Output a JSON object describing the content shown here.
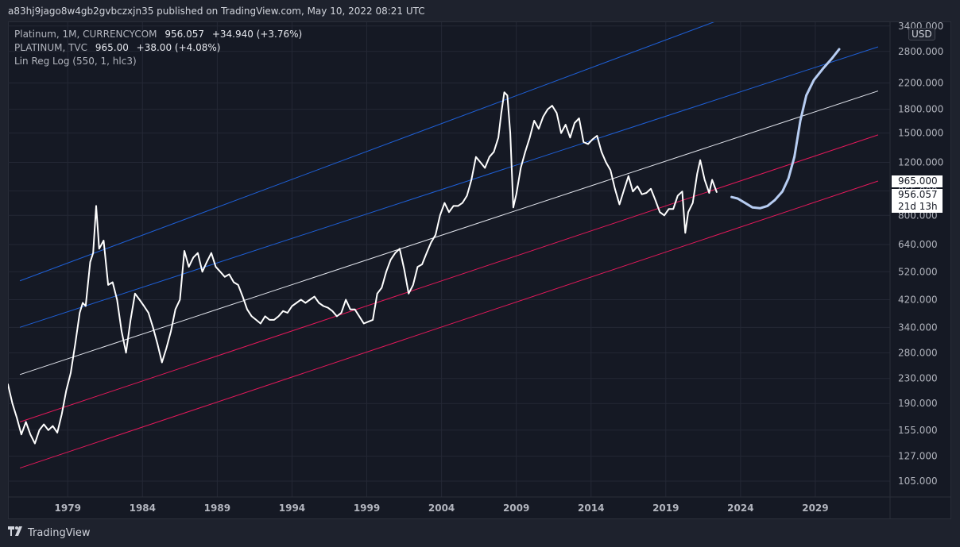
{
  "header": {
    "publish_text": "a83hj9jago8w4gb2gvbczxjn35 published on TradingView.com, May 10, 2022 08:21 UTC"
  },
  "legend": {
    "line1": {
      "name": "Platinum, 1M, CURRENCYCOM",
      "value": "956.057",
      "change": "+34.940 (+3.76%)"
    },
    "line2": {
      "name": "PLATINUM, TVC",
      "value": "965.00",
      "change": "+38.00 (+4.08%)"
    },
    "line3": {
      "name": "Lin Reg Log (550, 1, hlc3)"
    }
  },
  "currency": "USD",
  "price_tags": {
    "last": "965.000",
    "close": "956.057",
    "countdown": "21d 13h"
  },
  "footer": {
    "brand": "TradingView"
  },
  "colors": {
    "background": "#151924",
    "price": "#ffffff",
    "projection": "#b7cdf2",
    "regression_center": "#e0e3eb",
    "upper_channel": "#1e5fd6",
    "lower_channel": "#e3195a",
    "grid": "#242835"
  },
  "chart_data": {
    "type": "line",
    "scale": "log",
    "x_ticks": [
      "1979",
      "1984",
      "1989",
      "1994",
      "1999",
      "2004",
      "2009",
      "2014",
      "2019",
      "2024",
      "2029"
    ],
    "y_ticks": [
      "3400.000",
      "2800.000",
      "2200.000",
      "1800.000",
      "1500.000",
      "1200.000",
      "965.000",
      "800.000",
      "640.000",
      "520.000",
      "420.000",
      "340.000",
      "280.000",
      "230.000",
      "190.000",
      "155.000",
      "127.000",
      "105.000"
    ],
    "y_tick_values": [
      3400,
      2800,
      2200,
      1800,
      1500,
      1200,
      965,
      800,
      640,
      520,
      420,
      340,
      280,
      230,
      190,
      155,
      127,
      105
    ],
    "xlim": [
      1975.0,
      2034.0
    ],
    "ylim": [
      93,
      3500
    ],
    "series": [
      {
        "name": "Platinum, 1M, CURRENCYCOM",
        "points": [
          [
            1975.0,
            220
          ],
          [
            1975.3,
            190
          ],
          [
            1975.6,
            170
          ],
          [
            1975.9,
            150
          ],
          [
            1976.2,
            165
          ],
          [
            1976.5,
            150
          ],
          [
            1976.8,
            140
          ],
          [
            1977.1,
            155
          ],
          [
            1977.4,
            162
          ],
          [
            1977.7,
            155
          ],
          [
            1978.0,
            160
          ],
          [
            1978.3,
            152
          ],
          [
            1978.6,
            175
          ],
          [
            1978.9,
            210
          ],
          [
            1979.2,
            240
          ],
          [
            1979.5,
            300
          ],
          [
            1979.8,
            380
          ],
          [
            1980.0,
            410
          ],
          [
            1980.2,
            400
          ],
          [
            1980.5,
            560
          ],
          [
            1980.7,
            600
          ],
          [
            1980.9,
            860
          ],
          [
            1981.1,
            620
          ],
          [
            1981.4,
            660
          ],
          [
            1981.7,
            470
          ],
          [
            1982.0,
            480
          ],
          [
            1982.3,
            420
          ],
          [
            1982.6,
            330
          ],
          [
            1982.9,
            280
          ],
          [
            1983.2,
            360
          ],
          [
            1983.5,
            440
          ],
          [
            1983.8,
            420
          ],
          [
            1984.1,
            400
          ],
          [
            1984.4,
            380
          ],
          [
            1984.7,
            340
          ],
          [
            1985.0,
            300
          ],
          [
            1985.3,
            260
          ],
          [
            1985.6,
            290
          ],
          [
            1985.9,
            330
          ],
          [
            1986.2,
            390
          ],
          [
            1986.5,
            420
          ],
          [
            1986.8,
            610
          ],
          [
            1987.1,
            540
          ],
          [
            1987.4,
            580
          ],
          [
            1987.7,
            600
          ],
          [
            1988.0,
            520
          ],
          [
            1988.3,
            560
          ],
          [
            1988.6,
            600
          ],
          [
            1988.9,
            540
          ],
          [
            1989.2,
            520
          ],
          [
            1989.5,
            500
          ],
          [
            1989.8,
            510
          ],
          [
            1990.1,
            480
          ],
          [
            1990.4,
            470
          ],
          [
            1990.7,
            430
          ],
          [
            1991.0,
            390
          ],
          [
            1991.3,
            370
          ],
          [
            1991.6,
            360
          ],
          [
            1991.9,
            350
          ],
          [
            1992.2,
            370
          ],
          [
            1992.5,
            360
          ],
          [
            1992.8,
            360
          ],
          [
            1993.1,
            370
          ],
          [
            1993.4,
            385
          ],
          [
            1993.7,
            380
          ],
          [
            1994.0,
            400
          ],
          [
            1994.3,
            410
          ],
          [
            1994.6,
            420
          ],
          [
            1994.9,
            410
          ],
          [
            1995.2,
            420
          ],
          [
            1995.5,
            430
          ],
          [
            1995.8,
            410
          ],
          [
            1996.1,
            400
          ],
          [
            1996.4,
            395
          ],
          [
            1996.7,
            385
          ],
          [
            1997.0,
            370
          ],
          [
            1997.3,
            380
          ],
          [
            1997.6,
            420
          ],
          [
            1997.9,
            390
          ],
          [
            1998.2,
            390
          ],
          [
            1998.5,
            370
          ],
          [
            1998.8,
            350
          ],
          [
            1999.1,
            355
          ],
          [
            1999.4,
            360
          ],
          [
            1999.7,
            440
          ],
          [
            2000.0,
            460
          ],
          [
            2000.3,
            520
          ],
          [
            2000.6,
            570
          ],
          [
            2000.9,
            600
          ],
          [
            2001.2,
            620
          ],
          [
            2001.5,
            530
          ],
          [
            2001.8,
            440
          ],
          [
            2002.1,
            470
          ],
          [
            2002.4,
            540
          ],
          [
            2002.7,
            550
          ],
          [
            2003.0,
            600
          ],
          [
            2003.3,
            650
          ],
          [
            2003.6,
            690
          ],
          [
            2003.9,
            800
          ],
          [
            2004.2,
            880
          ],
          [
            2004.5,
            820
          ],
          [
            2004.8,
            860
          ],
          [
            2005.1,
            860
          ],
          [
            2005.4,
            880
          ],
          [
            2005.7,
            930
          ],
          [
            2006.0,
            1050
          ],
          [
            2006.3,
            1250
          ],
          [
            2006.6,
            1200
          ],
          [
            2006.9,
            1150
          ],
          [
            2007.2,
            1250
          ],
          [
            2007.5,
            1300
          ],
          [
            2007.8,
            1450
          ],
          [
            2008.0,
            1750
          ],
          [
            2008.2,
            2050
          ],
          [
            2008.4,
            2000
          ],
          [
            2008.6,
            1500
          ],
          [
            2008.8,
            850
          ],
          [
            2009.0,
            940
          ],
          [
            2009.3,
            1150
          ],
          [
            2009.6,
            1300
          ],
          [
            2009.9,
            1450
          ],
          [
            2010.2,
            1650
          ],
          [
            2010.5,
            1550
          ],
          [
            2010.8,
            1700
          ],
          [
            2011.1,
            1800
          ],
          [
            2011.4,
            1850
          ],
          [
            2011.7,
            1750
          ],
          [
            2012.0,
            1500
          ],
          [
            2012.3,
            1600
          ],
          [
            2012.6,
            1450
          ],
          [
            2012.9,
            1620
          ],
          [
            2013.2,
            1680
          ],
          [
            2013.5,
            1400
          ],
          [
            2013.8,
            1380
          ],
          [
            2014.1,
            1430
          ],
          [
            2014.4,
            1470
          ],
          [
            2014.7,
            1300
          ],
          [
            2015.0,
            1200
          ],
          [
            2015.3,
            1130
          ],
          [
            2015.6,
            980
          ],
          [
            2015.9,
            870
          ],
          [
            2016.2,
            970
          ],
          [
            2016.5,
            1080
          ],
          [
            2016.8,
            960
          ],
          [
            2017.1,
            1000
          ],
          [
            2017.4,
            940
          ],
          [
            2017.7,
            950
          ],
          [
            2018.0,
            980
          ],
          [
            2018.3,
            900
          ],
          [
            2018.6,
            820
          ],
          [
            2018.9,
            800
          ],
          [
            2019.2,
            840
          ],
          [
            2019.5,
            840
          ],
          [
            2019.8,
            930
          ],
          [
            2020.1,
            960
          ],
          [
            2020.3,
            700
          ],
          [
            2020.5,
            820
          ],
          [
            2020.8,
            880
          ],
          [
            2021.1,
            1100
          ],
          [
            2021.3,
            1220
          ],
          [
            2021.6,
            1050
          ],
          [
            2021.9,
            950
          ],
          [
            2022.1,
            1050
          ],
          [
            2022.4,
            956
          ]
        ]
      },
      {
        "name": "projection",
        "points": [
          [
            2023.4,
            920
          ],
          [
            2023.8,
            910
          ],
          [
            2024.3,
            880
          ],
          [
            2024.8,
            850
          ],
          [
            2025.3,
            845
          ],
          [
            2025.8,
            860
          ],
          [
            2026.3,
            900
          ],
          [
            2026.8,
            960
          ],
          [
            2027.2,
            1060
          ],
          [
            2027.6,
            1250
          ],
          [
            2028.0,
            1650
          ],
          [
            2028.4,
            2000
          ],
          [
            2028.9,
            2250
          ],
          [
            2029.5,
            2450
          ],
          [
            2030.1,
            2650
          ],
          [
            2030.6,
            2850
          ]
        ]
      }
    ],
    "regression_lines": [
      {
        "name": "upper-outer",
        "start": [
          1975.8,
          485
        ],
        "end": [
          2033.2,
          5600
        ]
      },
      {
        "name": "upper-inner",
        "start": [
          1975.8,
          340
        ],
        "end": [
          2033.2,
          2900
        ]
      },
      {
        "name": "center",
        "start": [
          1975.8,
          237
        ],
        "end": [
          2033.2,
          2070
        ]
      },
      {
        "name": "lower-inner",
        "start": [
          1975.8,
          165
        ],
        "end": [
          2033.2,
          1480
        ]
      },
      {
        "name": "lower-outer",
        "start": [
          1975.8,
          116
        ],
        "end": [
          2033.2,
          1040
        ]
      }
    ]
  }
}
